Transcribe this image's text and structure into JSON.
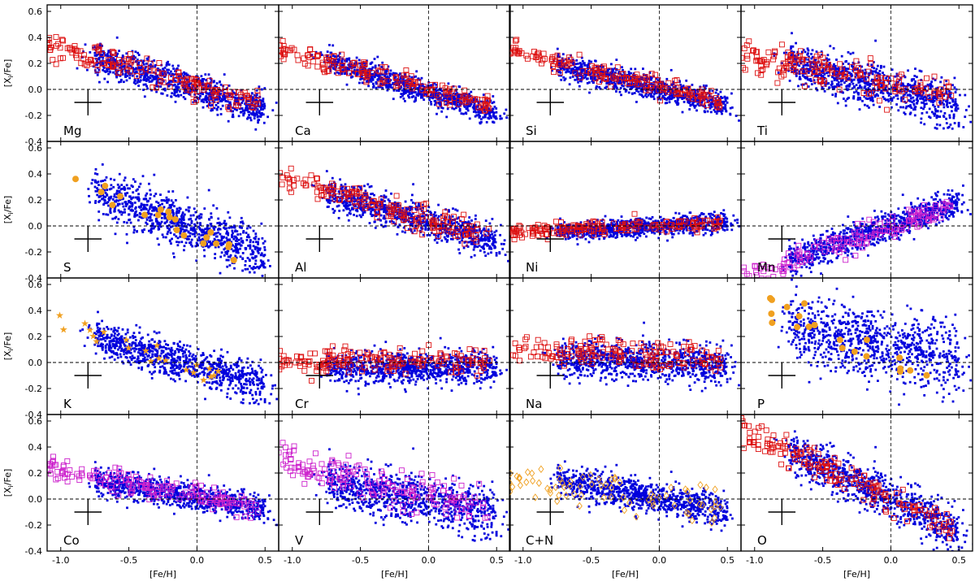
{
  "chart_data": {
    "type": "scatter",
    "layout": "4x4 grid of panels with shared axes",
    "xlabel": "[Fe/H]",
    "ylabel": "[X$_i$/Fe]",
    "ylabel_text": "[X",
    "ylabel_sub": "i",
    "ylabel_tail": "/Fe]",
    "xlim": [
      -1.1,
      0.6
    ],
    "ylim": [
      -0.4,
      0.65
    ],
    "x_ticks": [
      "-1.0",
      "-0.5",
      "0.0",
      "0.5"
    ],
    "x_tick_values": [
      -1.0,
      -0.5,
      0.0,
      0.5
    ],
    "y_ticks": [
      "0.6",
      "0.4",
      "0.2",
      "0.0",
      "-0.2",
      "-0.4"
    ],
    "y_tick_values": [
      0.6,
      0.4,
      0.2,
      0.0,
      -0.2,
      -0.4
    ],
    "reference_lines": {
      "x": 0.0,
      "y": 0.0
    },
    "error_bar": {
      "x": -0.8,
      "y": -0.1,
      "dx": 0.1,
      "dy": 0.1
    },
    "colors": {
      "sample": "#0000dd",
      "squares": "#dd1111",
      "magenta": "#cc22cc",
      "orange": "#f0a020",
      "axes": "#000000"
    },
    "panels": [
      {
        "element": "Mg",
        "slope": -0.32,
        "intercept": 0.0,
        "scatter": 0.06,
        "ref": "squares",
        "ref_slope": -0.3,
        "ref_intercept": 0.02
      },
      {
        "element": "Ca",
        "slope": -0.32,
        "intercept": -0.02,
        "scatter": 0.045,
        "ref": "squares",
        "ref_slope": -0.28,
        "ref_intercept": 0.0
      },
      {
        "element": "Si",
        "slope": -0.25,
        "intercept": 0.0,
        "scatter": 0.045,
        "ref": "squares",
        "ref_slope": -0.25,
        "ref_intercept": 0.02
      },
      {
        "element": "Ti",
        "slope": -0.28,
        "intercept": 0.0,
        "scatter": 0.08,
        "ref": "squares",
        "ref_slope": -0.2,
        "ref_intercept": 0.05
      },
      {
        "element": "S",
        "slope": -0.4,
        "intercept": -0.03,
        "scatter": 0.09,
        "ref": "orange-dots",
        "ref_slope": -0.4,
        "ref_intercept": -0.05
      },
      {
        "element": "Al",
        "slope": -0.3,
        "intercept": 0.03,
        "scatter": 0.06,
        "ref": "squares",
        "ref_slope": -0.3,
        "ref_intercept": 0.05
      },
      {
        "element": "Ni",
        "slope": 0.06,
        "intercept": 0.0,
        "scatter": 0.035,
        "ref": "squares",
        "ref_slope": 0.04,
        "ref_intercept": 0.0
      },
      {
        "element": "Mn",
        "slope": 0.35,
        "intercept": 0.0,
        "scatter": 0.055,
        "ref": "magenta-squares",
        "ref_slope": 0.35,
        "ref_intercept": -0.02
      },
      {
        "element": "K",
        "slope": -0.3,
        "intercept": -0.03,
        "scatter": 0.07,
        "ref": "orange-stars",
        "ref_slope": -0.35,
        "ref_intercept": -0.05
      },
      {
        "element": "Cr",
        "slope": 0.0,
        "intercept": -0.04,
        "scatter": 0.06,
        "ref": "squares",
        "ref_slope": 0.0,
        "ref_intercept": 0.01
      },
      {
        "element": "Na",
        "slope": -0.05,
        "intercept": 0.0,
        "scatter": 0.07,
        "ref": "squares",
        "ref_slope": -0.05,
        "ref_intercept": 0.05
      },
      {
        "element": "P",
        "slope": -0.2,
        "intercept": 0.12,
        "scatter": 0.13,
        "ref": "orange-dots",
        "ref_slope": -0.5,
        "ref_intercept": 0.0
      },
      {
        "element": "Co",
        "slope": -0.18,
        "intercept": 0.01,
        "scatter": 0.05,
        "ref": "magenta-squares",
        "ref_slope": -0.2,
        "ref_intercept": 0.02
      },
      {
        "element": "V",
        "slope": -0.2,
        "intercept": -0.02,
        "scatter": 0.09,
        "ref": "magenta-squares",
        "ref_slope": -0.25,
        "ref_intercept": 0.03
      },
      {
        "element": "C+N",
        "slope": -0.2,
        "intercept": 0.0,
        "scatter": 0.06,
        "ref": "orange-diamonds",
        "ref_slope": -0.15,
        "ref_intercept": 0.0
      },
      {
        "element": "O",
        "slope": -0.5,
        "intercept": 0.0,
        "scatter": 0.08,
        "ref": "squares",
        "ref_slope": -0.5,
        "ref_intercept": 0.0
      }
    ]
  }
}
